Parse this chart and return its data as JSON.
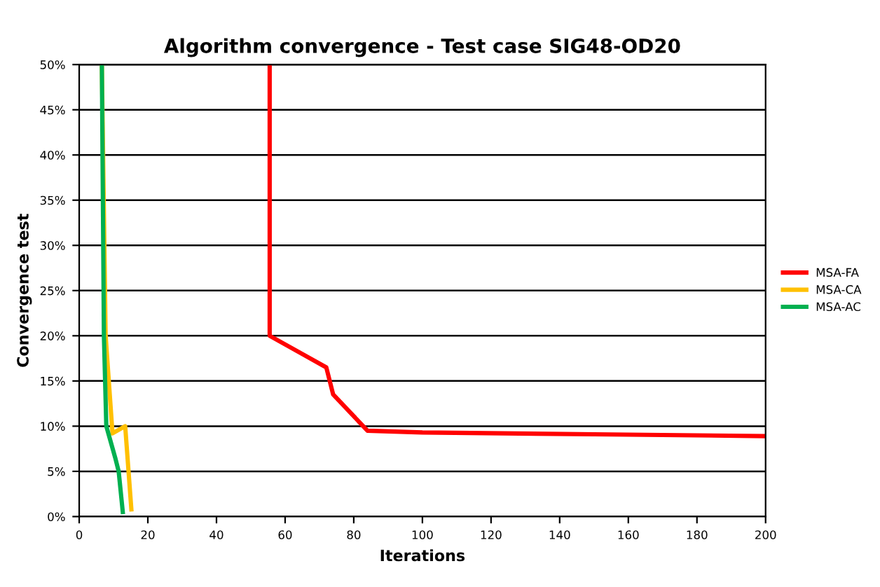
{
  "chart_data": {
    "type": "line",
    "title": "Algorithm convergence - Test case SIG48-OD20",
    "xlabel": "Iterations",
    "ylabel": "Convergence test",
    "xlim": [
      0,
      200
    ],
    "xticks": [
      0,
      20,
      40,
      60,
      80,
      100,
      120,
      140,
      160,
      180,
      200
    ],
    "ylim": [
      0,
      50
    ],
    "yticks": [
      {
        "value": 0,
        "label": "0%"
      },
      {
        "value": 5,
        "label": "5%"
      },
      {
        "value": 10,
        "label": "10%"
      },
      {
        "value": 15,
        "label": "15%"
      },
      {
        "value": 20,
        "label": "20%"
      },
      {
        "value": 25,
        "label": "25%"
      },
      {
        "value": 30,
        "label": "30%"
      },
      {
        "value": 35,
        "label": "35%"
      },
      {
        "value": 40,
        "label": "40%"
      },
      {
        "value": 45,
        "label": "45%"
      },
      {
        "value": 50,
        "label": "50%"
      }
    ],
    "grid": "y",
    "legend": "right",
    "marker": "none",
    "line_style": "solid",
    "series": [
      {
        "name": "MSA-FA",
        "color": "#ff0000",
        "x": [
          55.5,
          55.5,
          72,
          74,
          84,
          100,
          150,
          200
        ],
        "values": [
          50,
          20,
          16.5,
          13.5,
          9.5,
          9.3,
          9.1,
          8.9
        ]
      },
      {
        "name": "MSA-CA",
        "color": "#ffc000",
        "x": [
          6.6,
          7.7,
          9.7,
          13.4,
          15.2
        ],
        "values": [
          50,
          20,
          9.2,
          10,
          0.8
        ]
      },
      {
        "name": "MSA-AC",
        "color": "#00b050",
        "x": [
          6.6,
          7.2,
          7.9,
          10.5,
          11.5,
          12.7
        ],
        "values": [
          50,
          20,
          10,
          6.5,
          5,
          0.5
        ]
      }
    ]
  }
}
